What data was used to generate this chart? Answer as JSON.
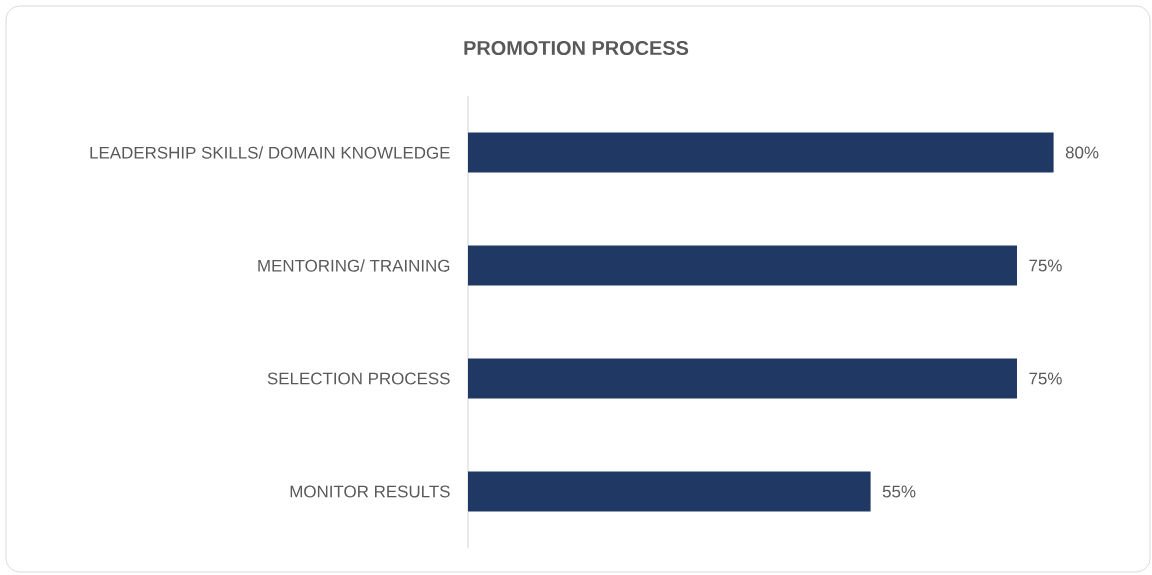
{
  "chart_data": {
    "type": "bar",
    "orientation": "horizontal",
    "title": "PROMOTION PROCESS",
    "categories": [
      "LEADERSHIP SKILLS/ DOMAIN KNOWLEDGE",
      "MENTORING/ TRAINING",
      "SELECTION PROCESS",
      "MONITOR RESULTS"
    ],
    "values": [
      80,
      75,
      75,
      55
    ],
    "value_labels": [
      "80%",
      "75%",
      "75%",
      "55%"
    ],
    "color": "#203864"
  }
}
